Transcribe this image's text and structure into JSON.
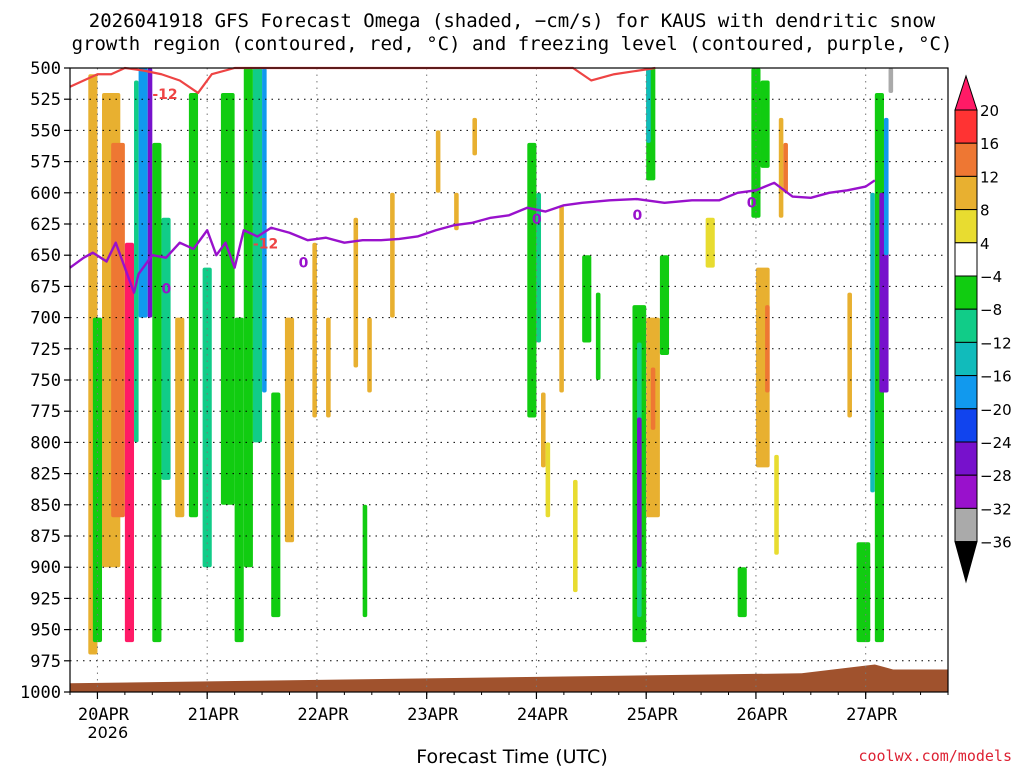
{
  "title_line1": "2026041918 GFS Forecast Omega (shaded, −cm/s) for KAUS with dendritic snow",
  "title_line2": "growth region (contoured, red, °C) and freezing level (contoured, purple, °C)",
  "x_axis_title": "Forecast Time (UTC)",
  "credit": "coolwx.com/models",
  "chart_data": {
    "type": "heatmap",
    "title": "2026041918 GFS Forecast Omega (shaded, −cm/s) for KAUS",
    "ylabel": "",
    "xlabel": "Forecast Time (UTC)",
    "y_axis": {
      "scale": "pressure",
      "unit": "hPa",
      "inverted": true,
      "range": [
        500,
        1000
      ],
      "ticks": [
        500,
        525,
        550,
        575,
        600,
        625,
        650,
        675,
        700,
        725,
        750,
        775,
        800,
        825,
        850,
        875,
        900,
        925,
        950,
        975,
        1000
      ]
    },
    "x_axis": {
      "range_hours": [
        0,
        192
      ],
      "ticks": [
        {
          "label": "20APR",
          "sublabel": "2026",
          "hour": 6
        },
        {
          "label": "21APR",
          "sublabel": "",
          "hour": 30
        },
        {
          "label": "22APR",
          "sublabel": "",
          "hour": 54
        },
        {
          "label": "23APR",
          "sublabel": "",
          "hour": 78
        },
        {
          "label": "24APR",
          "sublabel": "",
          "hour": 102
        },
        {
          "label": "25APR",
          "sublabel": "",
          "hour": 126
        },
        {
          "label": "26APR",
          "sublabel": "",
          "hour": 150
        },
        {
          "label": "27APR",
          "sublabel": "",
          "hour": 174
        }
      ]
    },
    "grid": true,
    "colorbar": {
      "levels": [
        20,
        16,
        12,
        8,
        4,
        -4,
        -8,
        -12,
        -16,
        -20,
        -24,
        -28,
        -32,
        -36
      ],
      "colors": [
        "#ff1a66",
        "#ff3333",
        "#ee7733",
        "#e8b030",
        "#e8dc30",
        "#ffffff",
        "#11cc11",
        "#11cc88",
        "#11bbbb",
        "#1199ee",
        "#1144ee",
        "#7711cc",
        "#9911cc",
        "#aaaaaa",
        "#000000"
      ]
    },
    "omega_regions": [
      {
        "h": [
          4,
          6
        ],
        "p": [
          505,
          970
        ],
        "v": 8
      },
      {
        "h": [
          5,
          7
        ],
        "p": [
          700,
          960
        ],
        "v": -8
      },
      {
        "h": [
          7,
          11
        ],
        "p": [
          520,
          900
        ],
        "v": 8
      },
      {
        "h": [
          9,
          12
        ],
        "p": [
          560,
          860
        ],
        "v": 12
      },
      {
        "h": [
          12,
          14
        ],
        "p": [
          640,
          960
        ],
        "v": 20
      },
      {
        "h": [
          14,
          15
        ],
        "p": [
          510,
          800
        ],
        "v": -12
      },
      {
        "h": [
          15,
          17
        ],
        "p": [
          500,
          700
        ],
        "v": -20
      },
      {
        "h": [
          17,
          18
        ],
        "p": [
          500,
          700
        ],
        "v": -28
      },
      {
        "h": [
          18,
          20
        ],
        "p": [
          560,
          960
        ],
        "v": -8
      },
      {
        "h": [
          20,
          22
        ],
        "p": [
          620,
          830
        ],
        "v": -12
      },
      {
        "h": [
          23,
          25
        ],
        "p": [
          700,
          860
        ],
        "v": 8
      },
      {
        "h": [
          26,
          28
        ],
        "p": [
          520,
          860
        ],
        "v": -8
      },
      {
        "h": [
          29,
          31
        ],
        "p": [
          660,
          900
        ],
        "v": -12
      },
      {
        "h": [
          33,
          36
        ],
        "p": [
          520,
          850
        ],
        "v": -8
      },
      {
        "h": [
          36,
          38
        ],
        "p": [
          700,
          960
        ],
        "v": -8
      },
      {
        "h": [
          38,
          40
        ],
        "p": [
          500,
          900
        ],
        "v": -8
      },
      {
        "h": [
          40,
          42
        ],
        "p": [
          500,
          800
        ],
        "v": -12
      },
      {
        "h": [
          42,
          43
        ],
        "p": [
          500,
          760
        ],
        "v": -20
      },
      {
        "h": [
          44,
          46
        ],
        "p": [
          760,
          940
        ],
        "v": -8
      },
      {
        "h": [
          47,
          49
        ],
        "p": [
          700,
          880
        ],
        "v": 8
      },
      {
        "h": [
          53,
          54
        ],
        "p": [
          640,
          780
        ],
        "v": 8
      },
      {
        "h": [
          56,
          57
        ],
        "p": [
          700,
          780
        ],
        "v": 8
      },
      {
        "h": [
          62,
          63
        ],
        "p": [
          620,
          740
        ],
        "v": 8
      },
      {
        "h": [
          64,
          65
        ],
        "p": [
          850,
          940
        ],
        "v": -8
      },
      {
        "h": [
          65,
          66
        ],
        "p": [
          700,
          760
        ],
        "v": 8
      },
      {
        "h": [
          70,
          71
        ],
        "p": [
          600,
          700
        ],
        "v": 8
      },
      {
        "h": [
          80,
          81
        ],
        "p": [
          550,
          600
        ],
        "v": 8
      },
      {
        "h": [
          84,
          85
        ],
        "p": [
          600,
          630
        ],
        "v": 8
      },
      {
        "h": [
          88,
          89
        ],
        "p": [
          540,
          570
        ],
        "v": 8
      },
      {
        "h": [
          100,
          102
        ],
        "p": [
          560,
          780
        ],
        "v": -8
      },
      {
        "h": [
          102,
          103
        ],
        "p": [
          600,
          720
        ],
        "v": -12
      },
      {
        "h": [
          103,
          104
        ],
        "p": [
          760,
          820
        ],
        "v": 8
      },
      {
        "h": [
          104,
          105
        ],
        "p": [
          800,
          860
        ],
        "v": 4
      },
      {
        "h": [
          107,
          108
        ],
        "p": [
          610,
          760
        ],
        "v": 8
      },
      {
        "h": [
          110,
          111
        ],
        "p": [
          830,
          920
        ],
        "v": 4
      },
      {
        "h": [
          112,
          114
        ],
        "p": [
          650,
          720
        ],
        "v": -8
      },
      {
        "h": [
          115,
          116
        ],
        "p": [
          680,
          750
        ],
        "v": -8
      },
      {
        "h": [
          123,
          126
        ],
        "p": [
          690,
          960
        ],
        "v": -8
      },
      {
        "h": [
          124,
          125
        ],
        "p": [
          720,
          940
        ],
        "v": -12
      },
      {
        "h": [
          124,
          125
        ],
        "p": [
          780,
          900
        ],
        "v": -28
      },
      {
        "h": [
          126,
          128
        ],
        "p": [
          500,
          590
        ],
        "v": -8
      },
      {
        "h": [
          126,
          127
        ],
        "p": [
          500,
          560
        ],
        "v": -16
      },
      {
        "h": [
          126,
          129
        ],
        "p": [
          700,
          860
        ],
        "v": 8
      },
      {
        "h": [
          127,
          128
        ],
        "p": [
          740,
          790
        ],
        "v": 12
      },
      {
        "h": [
          129,
          131
        ],
        "p": [
          650,
          730
        ],
        "v": -8
      },
      {
        "h": [
          139,
          141
        ],
        "p": [
          620,
          660
        ],
        "v": 4
      },
      {
        "h": [
          146,
          148
        ],
        "p": [
          900,
          940
        ],
        "v": -8
      },
      {
        "h": [
          149,
          151
        ],
        "p": [
          500,
          620
        ],
        "v": -8
      },
      {
        "h": [
          151,
          153
        ],
        "p": [
          510,
          580
        ],
        "v": -8
      },
      {
        "h": [
          150,
          153
        ],
        "p": [
          660,
          820
        ],
        "v": 8
      },
      {
        "h": [
          152,
          153
        ],
        "p": [
          690,
          760
        ],
        "v": 12
      },
      {
        "h": [
          154,
          155
        ],
        "p": [
          810,
          890
        ],
        "v": 4
      },
      {
        "h": [
          155,
          156
        ],
        "p": [
          540,
          620
        ],
        "v": 8
      },
      {
        "h": [
          156,
          157
        ],
        "p": [
          560,
          600
        ],
        "v": 12
      },
      {
        "h": [
          170,
          171
        ],
        "p": [
          680,
          780
        ],
        "v": 8
      },
      {
        "h": [
          172,
          175
        ],
        "p": [
          880,
          960
        ],
        "v": -8
      },
      {
        "h": [
          175,
          176
        ],
        "p": [
          600,
          840
        ],
        "v": -16
      },
      {
        "h": [
          176,
          178
        ],
        "p": [
          520,
          960
        ],
        "v": -8
      },
      {
        "h": [
          177,
          179
        ],
        "p": [
          600,
          760
        ],
        "v": -28
      },
      {
        "h": [
          178,
          179
        ],
        "p": [
          540,
          650
        ],
        "v": -20
      },
      {
        "h": [
          179,
          180
        ],
        "p": [
          500,
          520
        ],
        "v": -36
      }
    ],
    "dendritic_growth_contour": {
      "label": "-12",
      "color": "#ee4444",
      "points": [
        [
          0,
          515
        ],
        [
          3,
          510
        ],
        [
          6,
          505
        ],
        [
          9,
          505
        ],
        [
          12,
          500
        ],
        [
          16,
          502
        ],
        [
          20,
          505
        ],
        [
          24,
          510
        ],
        [
          28,
          520
        ],
        [
          31,
          505
        ],
        [
          36,
          500
        ],
        [
          110,
          500
        ],
        [
          114,
          510
        ],
        [
          119,
          505
        ],
        [
          128,
          500
        ]
      ]
    },
    "freezing_level_contour": {
      "label": "0",
      "color": "#9911cc",
      "points": [
        [
          0,
          660
        ],
        [
          3,
          652
        ],
        [
          5,
          648
        ],
        [
          8,
          655
        ],
        [
          10,
          640
        ],
        [
          12,
          660
        ],
        [
          14,
          680
        ],
        [
          15,
          665
        ],
        [
          18,
          650
        ],
        [
          21,
          652
        ],
        [
          24,
          640
        ],
        [
          27,
          645
        ],
        [
          30,
          630
        ],
        [
          32,
          650
        ],
        [
          34,
          640
        ],
        [
          36,
          660
        ],
        [
          38,
          630
        ],
        [
          41,
          635
        ],
        [
          44,
          628
        ],
        [
          48,
          632
        ],
        [
          52,
          638
        ],
        [
          56,
          636
        ],
        [
          60,
          640
        ],
        [
          64,
          638
        ],
        [
          68,
          638
        ],
        [
          72,
          637
        ],
        [
          76,
          635
        ],
        [
          80,
          630
        ],
        [
          84,
          626
        ],
        [
          88,
          624
        ],
        [
          92,
          620
        ],
        [
          96,
          618
        ],
        [
          100,
          612
        ],
        [
          104,
          615
        ],
        [
          108,
          610
        ],
        [
          112,
          608
        ],
        [
          118,
          606
        ],
        [
          124,
          605
        ],
        [
          130,
          608
        ],
        [
          136,
          606
        ],
        [
          142,
          606
        ],
        [
          146,
          600
        ],
        [
          150,
          598
        ],
        [
          154,
          592
        ],
        [
          158,
          603
        ],
        [
          162,
          604
        ],
        [
          166,
          600
        ],
        [
          170,
          598
        ],
        [
          174,
          595
        ],
        [
          176,
          590
        ]
      ]
    },
    "ground_level": [
      [
        0,
        993
      ],
      [
        40,
        991
      ],
      [
        80,
        989
      ],
      [
        120,
        987
      ],
      [
        160,
        985
      ],
      [
        176,
        978
      ],
      [
        180,
        982
      ]
    ]
  }
}
